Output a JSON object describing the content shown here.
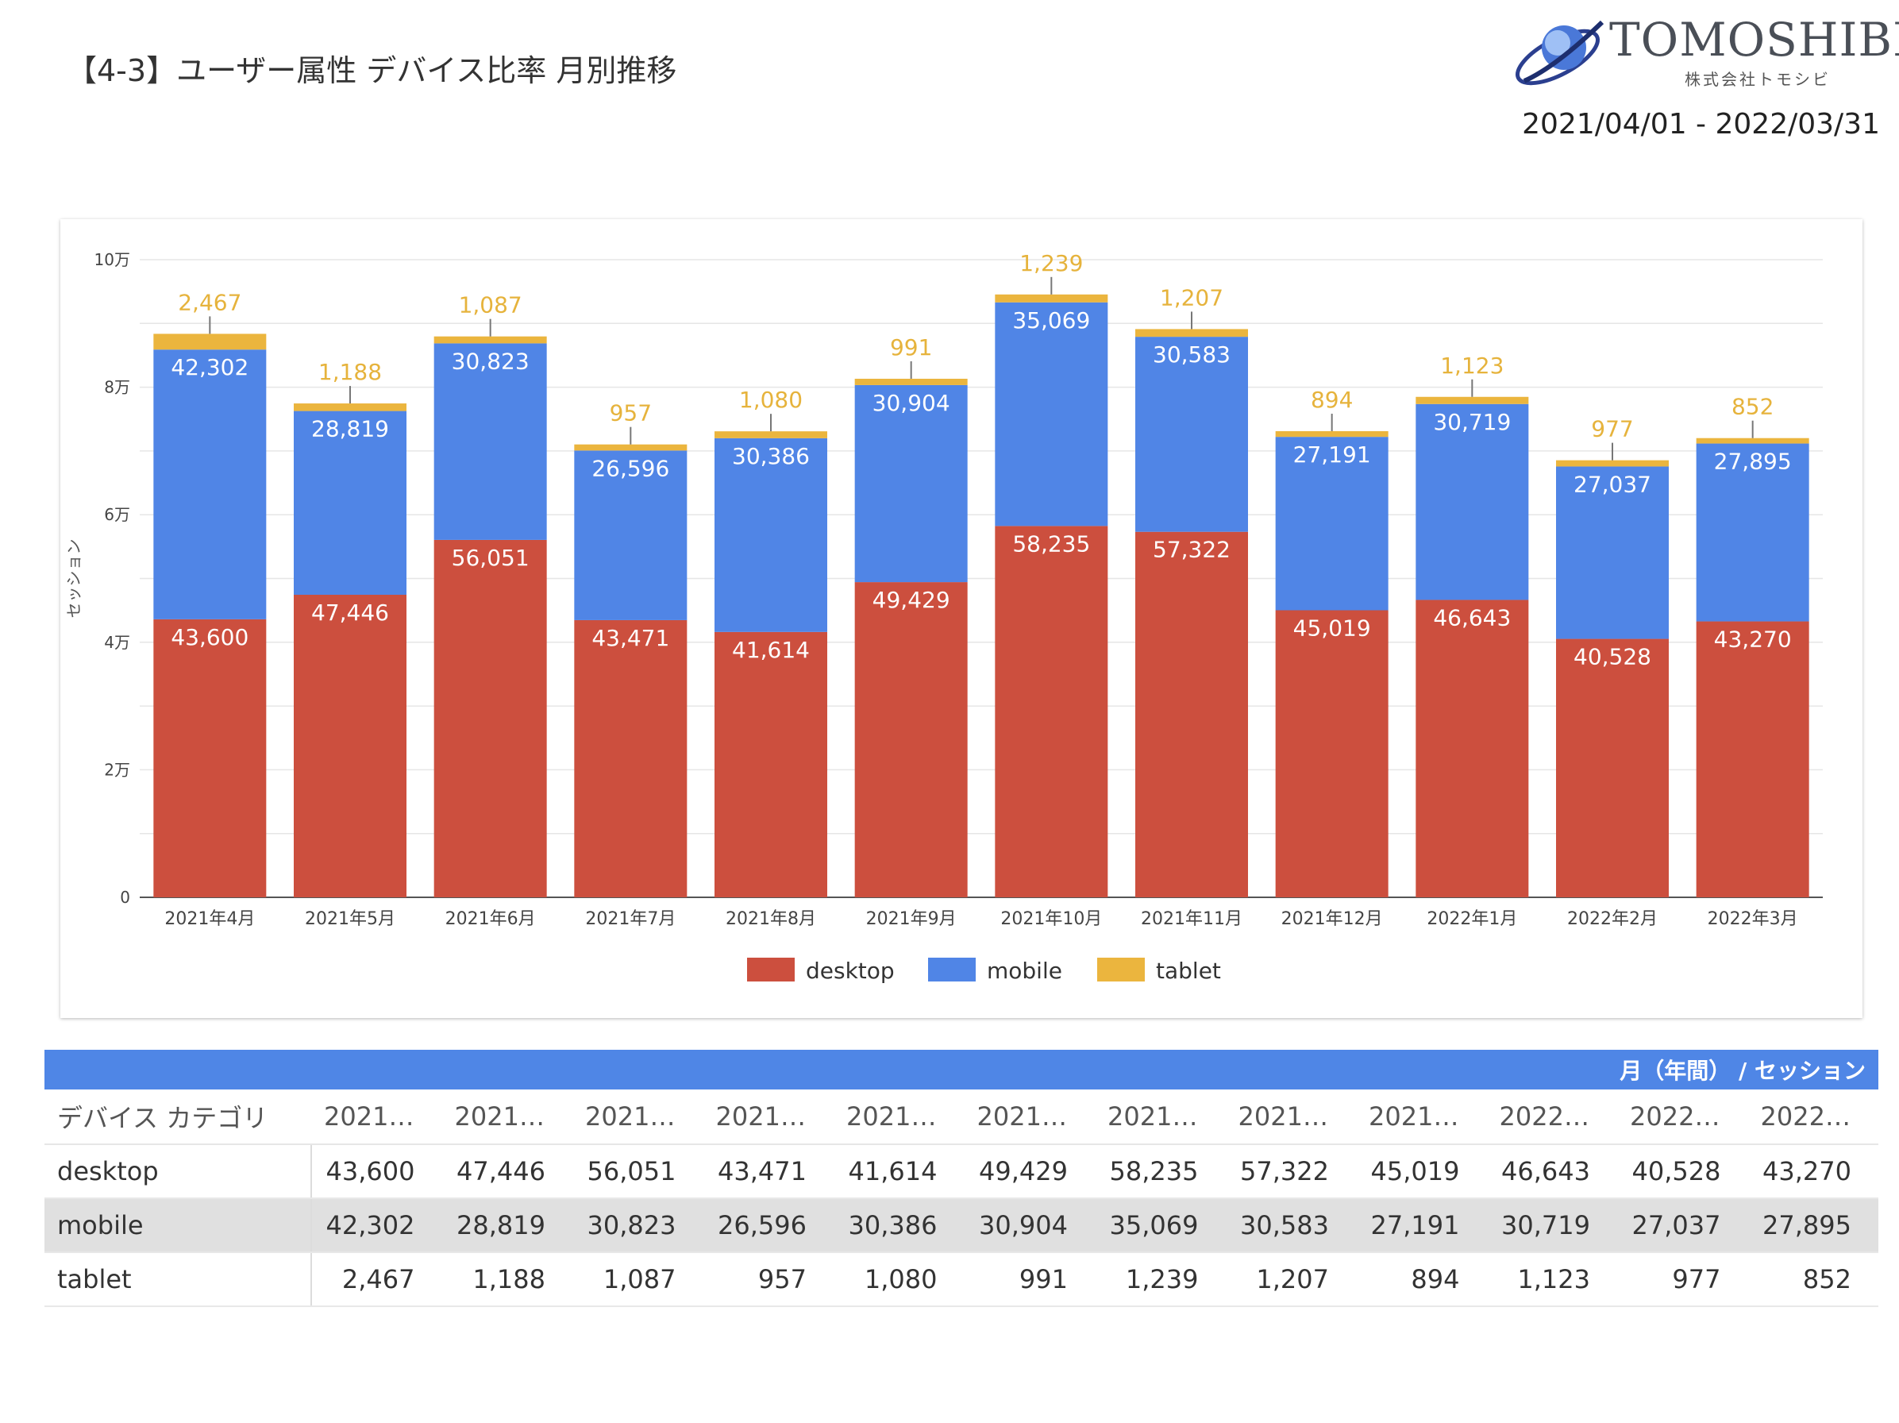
{
  "page": {
    "title": "【4-3】ユーザー属性 デバイス比率 月別推移",
    "date_range": "2021/04/01 - 2022/03/31",
    "logo_name": "TOMOSHIBI",
    "logo_sub": "株式会社トモシビ"
  },
  "chart_data": {
    "type": "bar",
    "stacked": true,
    "ylabel": "セッション",
    "ylim": [
      0,
      100000
    ],
    "y_ticks": [
      "0",
      "2万",
      "4万",
      "6万",
      "8万",
      "10万"
    ],
    "y_tick_values": [
      0,
      20000,
      40000,
      60000,
      80000,
      100000
    ],
    "categories": [
      "2021年4月",
      "2021年5月",
      "2021年6月",
      "2021年7月",
      "2021年8月",
      "2021年9月",
      "2021年10月",
      "2021年11月",
      "2021年12月",
      "2022年1月",
      "2022年2月",
      "2022年3月"
    ],
    "series": [
      {
        "name": "desktop",
        "color": "#cc4f3e",
        "values": [
          43600,
          47446,
          56051,
          43471,
          41614,
          49429,
          58235,
          57322,
          45019,
          46643,
          40528,
          43270
        ],
        "labels": [
          "43,600",
          "47,446",
          "56,051",
          "43,471",
          "41,614",
          "49,429",
          "58,235",
          "57,322",
          "45,019",
          "46,643",
          "40,528",
          "43,270"
        ]
      },
      {
        "name": "mobile",
        "color": "#5085e6",
        "values": [
          42302,
          28819,
          30823,
          26596,
          30386,
          30904,
          35069,
          30583,
          27191,
          30719,
          27037,
          27895
        ],
        "labels": [
          "42,302",
          "28,819",
          "30,823",
          "26,596",
          "30,386",
          "30,904",
          "35,069",
          "30,583",
          "27,191",
          "30,719",
          "27,037",
          "27,895"
        ]
      },
      {
        "name": "tablet",
        "color": "#ebb53e",
        "values": [
          2467,
          1188,
          1087,
          957,
          1080,
          991,
          1239,
          1207,
          894,
          1123,
          977,
          852
        ],
        "labels": [
          "2,467",
          "1,188",
          "1,087",
          "957",
          "1,080",
          "991",
          "1,239",
          "1,207",
          "894",
          "1,123",
          "977",
          "852"
        ]
      }
    ],
    "legend": "bottom-center",
    "grid": true
  },
  "table": {
    "header_bar": "月（年間） / セッション",
    "dimension_header": "デバイス カテゴリ",
    "columns": [
      "2021…",
      "2021…",
      "2021…",
      "2021…",
      "2021…",
      "2021…",
      "2021…",
      "2021…",
      "2021…",
      "2022…",
      "2022…",
      "2022…"
    ],
    "rows": [
      {
        "label": "desktop",
        "cells": [
          "43,600",
          "47,446",
          "56,051",
          "43,471",
          "41,614",
          "49,429",
          "58,235",
          "57,322",
          "45,019",
          "46,643",
          "40,528",
          "43,270"
        ]
      },
      {
        "label": "mobile",
        "cells": [
          "42,302",
          "28,819",
          "30,823",
          "26,596",
          "30,386",
          "30,904",
          "35,069",
          "30,583",
          "27,191",
          "30,719",
          "27,037",
          "27,895"
        ]
      },
      {
        "label": "tablet",
        "cells": [
          "2,467",
          "1,188",
          "1,087",
          "957",
          "1,080",
          "991",
          "1,239",
          "1,207",
          "894",
          "1,123",
          "977",
          "852"
        ]
      }
    ]
  }
}
